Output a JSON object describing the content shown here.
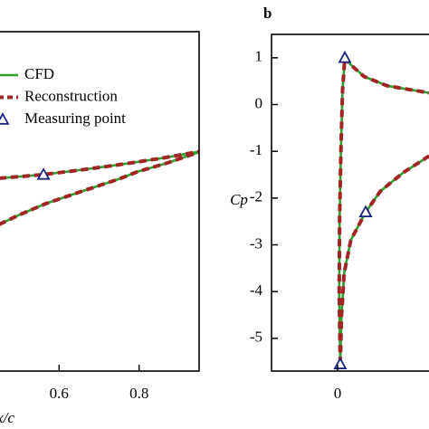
{
  "chart_data": [
    {
      "type": "line",
      "x_label": "x/c",
      "xlim": [
        0.45,
        0.95
      ],
      "xticks": [
        0.6,
        0.8
      ],
      "ylim": [
        0,
        1
      ],
      "legend": true,
      "series": [
        {
          "name": "CFD",
          "color": "#2e9e2e",
          "style": "solid",
          "x": [
            0.45,
            0.561,
            0.65,
            0.75,
            0.85,
            0.957,
            null,
            0.45,
            0.5,
            0.566,
            0.65,
            0.75,
            0.795,
            0.87,
            0.957
          ],
          "values": [
            0.568,
            0.579,
            0.592,
            0.608,
            0.626,
            0.648,
            null,
            0.432,
            0.46,
            0.493,
            0.527,
            0.566,
            0.587,
            0.613,
            0.648
          ]
        },
        {
          "name": "Reconstruction",
          "color": "#a32424",
          "style": "dashed",
          "x": [
            0.45,
            0.561,
            0.65,
            0.75,
            0.85,
            0.957,
            null,
            0.45,
            0.5,
            0.566,
            0.65,
            0.75,
            0.795,
            0.87,
            0.957
          ],
          "values": [
            0.568,
            0.579,
            0.592,
            0.608,
            0.626,
            0.648,
            null,
            0.432,
            0.46,
            0.493,
            0.527,
            0.566,
            0.587,
            0.613,
            0.648
          ]
        },
        {
          "name": "Measuring point",
          "color": "#1a237e",
          "style": "marker",
          "x": [
            0.561
          ],
          "values": [
            0.579
          ]
        }
      ]
    },
    {
      "type": "line",
      "panel_label": "b",
      "y_label": "Cp",
      "xlim": [
        -0.2,
        0.4
      ],
      "xticks": [
        0
      ],
      "ylim": [
        -5.7,
        1.5
      ],
      "yticks": [
        1,
        0,
        -1,
        -2,
        -3,
        -4,
        -5
      ],
      "legend": false,
      "series": [
        {
          "name": "CFD",
          "color": "#2e9e2e",
          "style": "solid",
          "x": [
            0.008,
            0.005,
            0.006,
            0.01,
            0.015,
            0.022,
            0.04,
            0.08,
            0.15,
            0.277,
            null,
            0.008,
            0.012,
            0.02,
            0.04,
            0.085,
            0.13,
            0.2,
            0.277
          ],
          "values": [
            -5.55,
            -4,
            -2.5,
            -1,
            0.3,
            1.0,
            0.85,
            0.6,
            0.4,
            0.25,
            null,
            -5.55,
            -4.5,
            -3.6,
            -2.9,
            -2.3,
            -1.85,
            -1.45,
            -1.1
          ]
        },
        {
          "name": "Reconstruction",
          "color": "#a32424",
          "style": "dashed",
          "x": [
            0.008,
            0.005,
            0.006,
            0.01,
            0.015,
            0.022,
            0.04,
            0.08,
            0.15,
            0.277,
            null,
            0.008,
            0.012,
            0.02,
            0.04,
            0.085,
            0.13,
            0.2,
            0.277
          ],
          "values": [
            -5.55,
            -4,
            -2.5,
            -1,
            0.3,
            1.0,
            0.85,
            0.6,
            0.4,
            0.25,
            null,
            -5.55,
            -4.5,
            -3.6,
            -2.9,
            -2.3,
            -1.85,
            -1.45,
            -1.1
          ]
        },
        {
          "name": "Measuring point",
          "color": "#1a237e",
          "style": "marker",
          "x": [
            0.008,
            0.022,
            0.085
          ],
          "values": [
            -5.55,
            1.0,
            -2.3
          ]
        }
      ]
    }
  ]
}
